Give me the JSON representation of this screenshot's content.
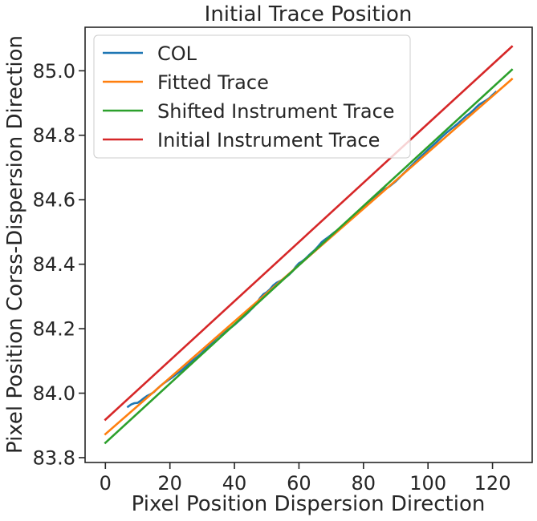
{
  "chart_data": {
    "type": "line",
    "title": "Initial Trace Position",
    "xlabel": "Pixel Position Dispersion Direction",
    "ylabel": "Pixel Position Corss-Dispersion Direction",
    "xlim": [
      -6.3,
      132.3
    ],
    "ylim": [
      83.785,
      85.135
    ],
    "xticks": [
      0,
      20,
      40,
      60,
      80,
      100,
      120
    ],
    "yticks": [
      83.8,
      84.0,
      84.2,
      84.4,
      84.6,
      84.8,
      85.0
    ],
    "ytick_labels": [
      "83.8",
      "84.0",
      "84.2",
      "84.4",
      "84.6",
      "84.8",
      "85.0"
    ],
    "grid": false,
    "legend_position": "upper-left",
    "series": [
      {
        "name": "COL",
        "color": "#1f77b4",
        "x": [
          7,
          8,
          9,
          10,
          11,
          12,
          13,
          14,
          15,
          16,
          17,
          18,
          19,
          20,
          21,
          22,
          23,
          24,
          25,
          26,
          27,
          28,
          29,
          30,
          31,
          32,
          33,
          34,
          35,
          36,
          37,
          38,
          39,
          40,
          41,
          42,
          43,
          44,
          45,
          46,
          47,
          48,
          49,
          50,
          51,
          52,
          53,
          54,
          55,
          56,
          57,
          58,
          59,
          60,
          61,
          62,
          63,
          64,
          65,
          66,
          67,
          68,
          69,
          70,
          71,
          72,
          73,
          74,
          75,
          76,
          77,
          78,
          79,
          80,
          81,
          82,
          83,
          84,
          85,
          86,
          87,
          88,
          89,
          90,
          91,
          92,
          93,
          94,
          95,
          96,
          97,
          98,
          99,
          100,
          101,
          102,
          103,
          104,
          105,
          106,
          107,
          108,
          109,
          110,
          111,
          112,
          113,
          114,
          115,
          116,
          117,
          118,
          119,
          120,
          121
        ],
        "y": [
          83.958,
          83.965,
          83.969,
          83.97,
          83.977,
          83.985,
          83.992,
          83.997,
          84.003,
          84.013,
          84.022,
          84.03,
          84.037,
          84.044,
          84.051,
          84.059,
          84.066,
          84.074,
          84.083,
          84.092,
          84.101,
          84.109,
          84.117,
          84.126,
          84.136,
          84.146,
          84.156,
          84.167,
          84.177,
          84.184,
          84.19,
          84.197,
          84.204,
          84.212,
          84.221,
          84.23,
          84.239,
          84.248,
          84.258,
          84.268,
          84.281,
          84.296,
          84.307,
          84.313,
          84.322,
          84.334,
          84.342,
          84.347,
          84.353,
          84.36,
          84.368,
          84.378,
          84.392,
          84.403,
          84.409,
          84.417,
          84.427,
          84.436,
          84.445,
          84.456,
          84.468,
          84.476,
          84.483,
          84.491,
          84.499,
          84.506,
          84.512,
          84.521,
          84.533,
          84.543,
          84.552,
          84.561,
          84.57,
          84.578,
          84.587,
          84.596,
          84.605,
          84.614,
          84.622,
          84.629,
          84.635,
          84.641,
          84.649,
          84.657,
          84.667,
          84.677,
          84.687,
          84.697,
          84.707,
          84.717,
          84.727,
          84.736,
          84.745,
          84.755,
          84.764,
          84.773,
          84.782,
          84.792,
          84.801,
          84.81,
          84.818,
          84.826,
          84.834,
          84.843,
          84.852,
          84.861,
          84.868,
          84.877,
          84.887,
          84.896,
          84.902,
          84.908,
          84.915,
          84.925,
          84.934
        ]
      },
      {
        "name": "Fitted Trace",
        "color": "#ff7f0e",
        "x": [
          0,
          126
        ],
        "y": [
          83.873,
          84.974
        ]
      },
      {
        "name": "Shifted Instrument Trace",
        "color": "#2ca02c",
        "x": [
          0,
          126
        ],
        "y": [
          83.846,
          85.003
        ]
      },
      {
        "name": "Initial Instrument Trace",
        "color": "#d62728",
        "x": [
          0,
          126
        ],
        "y": [
          83.918,
          85.075
        ]
      }
    ]
  }
}
